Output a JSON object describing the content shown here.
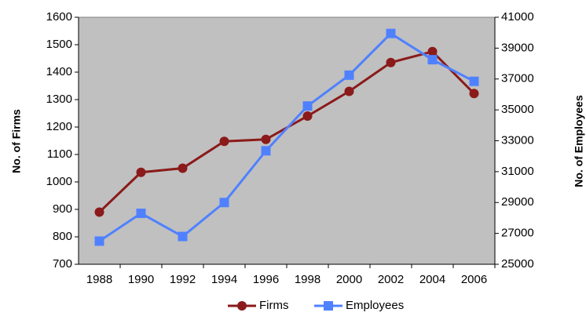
{
  "chart_data": {
    "type": "line",
    "categories": [
      "1988",
      "1990",
      "1992",
      "1994",
      "1996",
      "1998",
      "2000",
      "2002",
      "2004",
      "2006"
    ],
    "y_label": "No. of Firms",
    "y2_label": "No. of Employees",
    "series": [
      {
        "name": "Firms",
        "color": "#8b1a1a",
        "marker": "circle",
        "values": [
          890,
          1035,
          1050,
          1148,
          1155,
          1240,
          1330,
          1435,
          1475,
          1322
        ]
      },
      {
        "name": "Employees",
        "color": "#4f81ff",
        "marker": "square",
        "axis": "y2",
        "values": [
          26500,
          28300,
          26800,
          29000,
          32350,
          35250,
          37250,
          39950,
          38250,
          36850
        ]
      }
    ],
    "ylim": [
      700,
      1600
    ],
    "yticks": [
      700,
      800,
      900,
      1000,
      1100,
      1200,
      1300,
      1400,
      1500,
      1600
    ],
    "y2lim": [
      25000,
      41000
    ],
    "y2ticks": [
      25000,
      27000,
      29000,
      31000,
      33000,
      35000,
      37000,
      39000,
      41000
    ],
    "legend": "bottom"
  }
}
